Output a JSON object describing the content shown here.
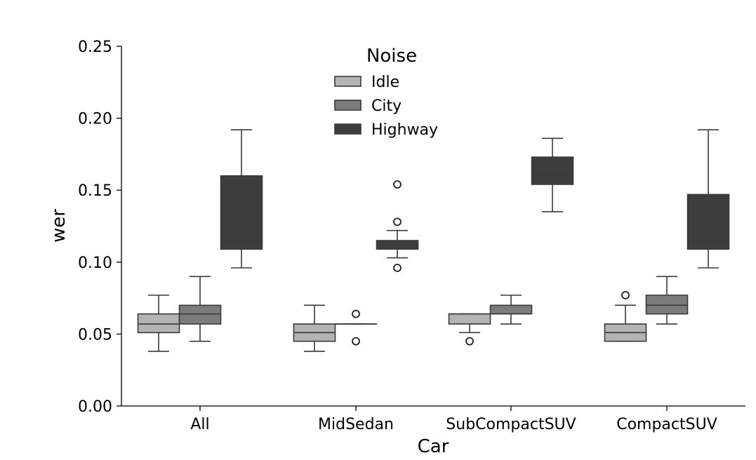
{
  "chart_data": {
    "type": "box",
    "xlabel": "Car",
    "ylabel": "wer",
    "ylim": [
      0,
      0.25
    ],
    "yticks": [
      0.0,
      0.05,
      0.1,
      0.15,
      0.2,
      0.25
    ],
    "ytick_labels": [
      "0.00",
      "0.05",
      "0.10",
      "0.15",
      "0.20",
      "0.25"
    ],
    "categories": [
      "All",
      "MidSedan",
      "SubCompactSUV",
      "CompactSUV"
    ],
    "legend": {
      "title": "Noise",
      "position": "top-center",
      "entries": [
        "Idle",
        "City",
        "Highway"
      ]
    },
    "colors": {
      "Idle": "#b4b4b4",
      "City": "#7c7c7c",
      "Highway": "#3d3d3d"
    },
    "series": [
      {
        "name": "Idle",
        "boxes": [
          {
            "category": "All",
            "whislo": 0.038,
            "q1": 0.051,
            "median": 0.057,
            "q3": 0.064,
            "whishi": 0.077,
            "fliers": []
          },
          {
            "category": "MidSedan",
            "whislo": 0.038,
            "q1": 0.045,
            "median": 0.051,
            "q3": 0.057,
            "whishi": 0.07,
            "fliers": []
          },
          {
            "category": "SubCompactSUV",
            "whislo": 0.051,
            "q1": 0.057,
            "median": 0.064,
            "q3": 0.064,
            "whishi": 0.064,
            "fliers": [
              0.045
            ]
          },
          {
            "category": "CompactSUV",
            "whislo": 0.045,
            "q1": 0.045,
            "median": 0.051,
            "q3": 0.057,
            "whishi": 0.07,
            "fliers": [
              0.077
            ]
          }
        ]
      },
      {
        "name": "City",
        "boxes": [
          {
            "category": "All",
            "whislo": 0.045,
            "q1": 0.057,
            "median": 0.064,
            "q3": 0.07,
            "whishi": 0.09,
            "fliers": []
          },
          {
            "category": "MidSedan",
            "whislo": 0.057,
            "q1": 0.057,
            "median": 0.057,
            "q3": 0.057,
            "whishi": 0.057,
            "fliers": [
              0.064,
              0.045
            ]
          },
          {
            "category": "SubCompactSUV",
            "whislo": 0.057,
            "q1": 0.064,
            "median": 0.064,
            "q3": 0.07,
            "whishi": 0.077,
            "fliers": []
          },
          {
            "category": "CompactSUV",
            "whislo": 0.057,
            "q1": 0.064,
            "median": 0.07,
            "q3": 0.077,
            "whishi": 0.09,
            "fliers": []
          }
        ]
      },
      {
        "name": "Highway",
        "boxes": [
          {
            "category": "All",
            "whislo": 0.096,
            "q1": 0.109,
            "median": 0.115,
            "q3": 0.16,
            "whishi": 0.192,
            "fliers": []
          },
          {
            "category": "MidSedan",
            "whislo": 0.103,
            "q1": 0.109,
            "median": 0.112,
            "q3": 0.115,
            "whishi": 0.122,
            "fliers": [
              0.154,
              0.128,
              0.096
            ]
          },
          {
            "category": "SubCompactSUV",
            "whislo": 0.135,
            "q1": 0.154,
            "median": 0.16,
            "q3": 0.173,
            "whishi": 0.186,
            "fliers": []
          },
          {
            "category": "CompactSUV",
            "whislo": 0.096,
            "q1": 0.109,
            "median": 0.115,
            "q3": 0.147,
            "whishi": 0.192,
            "fliers": []
          }
        ]
      }
    ]
  }
}
